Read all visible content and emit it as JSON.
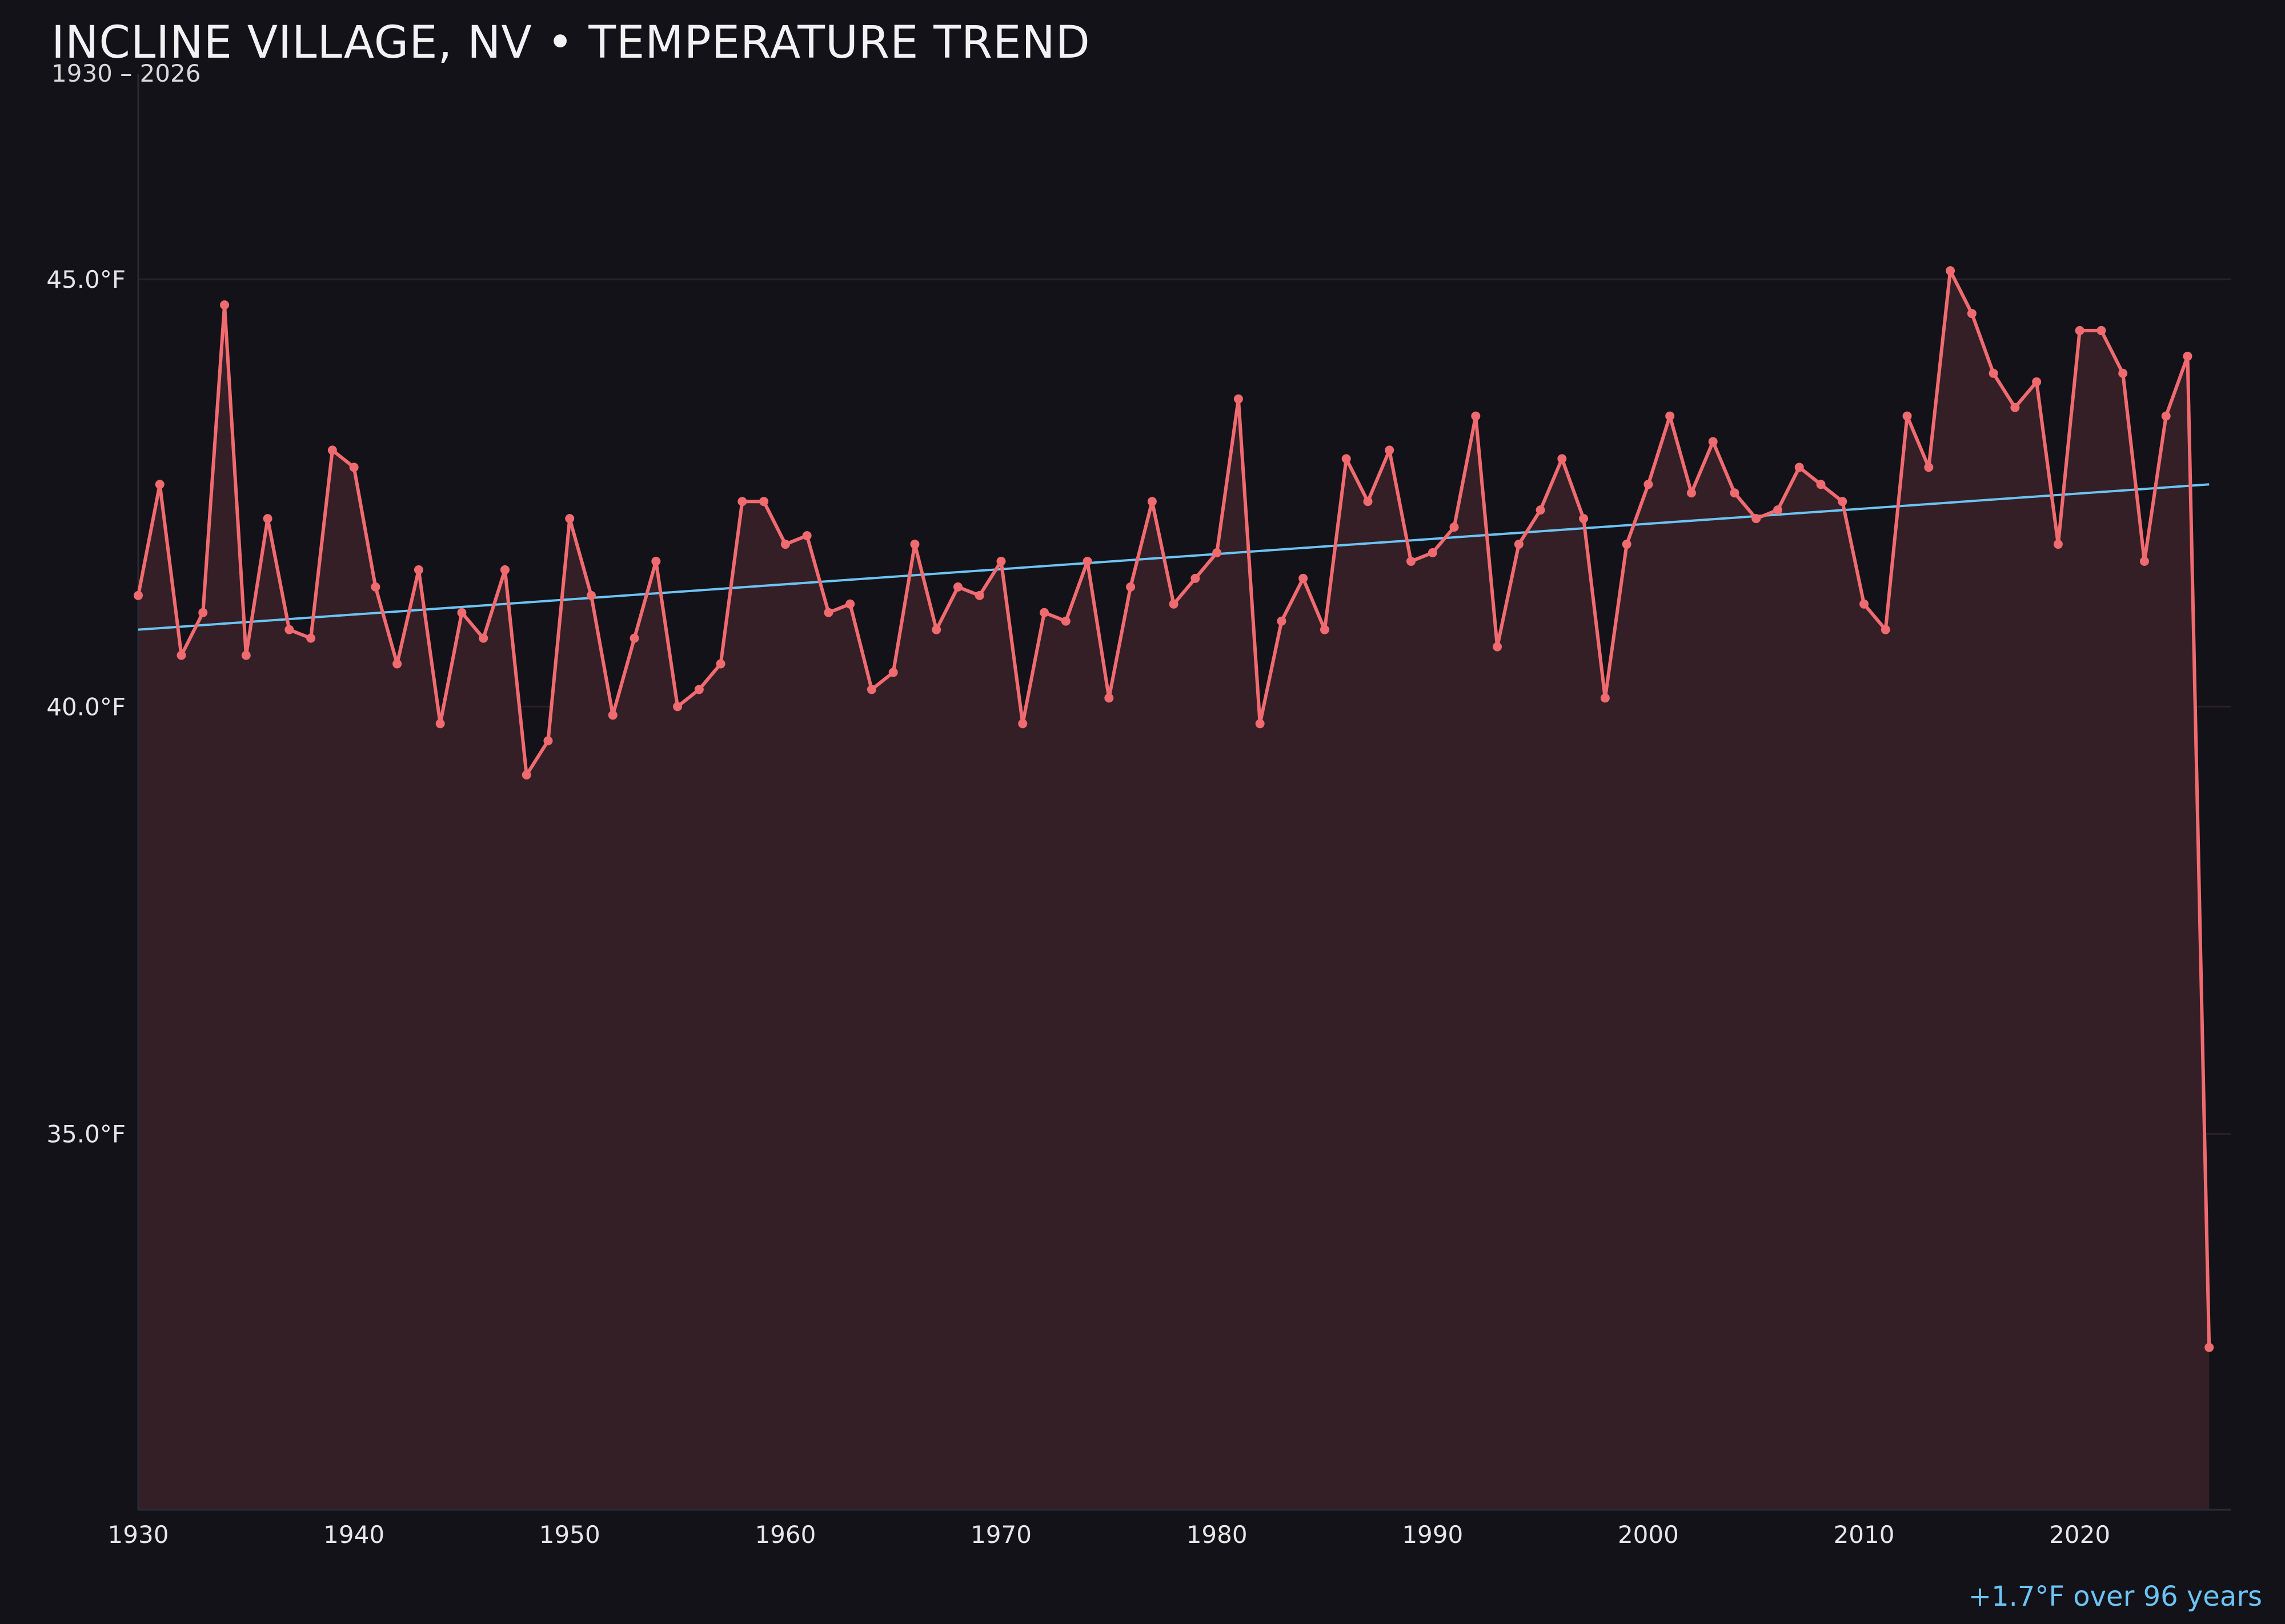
{
  "chart_data": {
    "type": "line",
    "title": "INCLINE VILLAGE, NV • TEMPERATURE TREND",
    "subtitle": "1930 – 2026",
    "summary": "+1.7°F over 96 years",
    "xlim": [
      1930,
      2027
    ],
    "ylim": [
      30.6,
      47.4
    ],
    "x_ticks": [
      1930,
      1940,
      1950,
      1960,
      1970,
      1980,
      1990,
      2000,
      2010,
      2020
    ],
    "x_tick_labels": [
      "1930",
      "1940",
      "1950",
      "1960",
      "1970",
      "1980",
      "1990",
      "2000",
      "2010",
      "2020"
    ],
    "y_ticks": [
      35,
      40,
      45
    ],
    "y_tick_labels": [
      "35.0°F",
      "40.0°F",
      "45.0°F"
    ],
    "grid": true,
    "colors": {
      "background": "#131218",
      "line": "#f06b70",
      "fill": "#341f26",
      "trend": "#6cc4f5",
      "grid": "#2a2228"
    },
    "x": [
      1930,
      1931,
      1932,
      1933,
      1934,
      1935,
      1936,
      1937,
      1938,
      1939,
      1940,
      1941,
      1942,
      1943,
      1944,
      1945,
      1946,
      1947,
      1948,
      1949,
      1950,
      1951,
      1952,
      1953,
      1954,
      1955,
      1956,
      1957,
      1958,
      1959,
      1960,
      1961,
      1962,
      1963,
      1964,
      1965,
      1966,
      1967,
      1968,
      1969,
      1970,
      1971,
      1972,
      1973,
      1974,
      1975,
      1976,
      1977,
      1978,
      1979,
      1980,
      1981,
      1982,
      1983,
      1984,
      1985,
      1986,
      1987,
      1988,
      1989,
      1990,
      1991,
      1992,
      1993,
      1994,
      1995,
      1996,
      1997,
      1998,
      1999,
      2000,
      2001,
      2002,
      2003,
      2004,
      2005,
      2006,
      2007,
      2008,
      2009,
      2010,
      2011,
      2012,
      2013,
      2014,
      2015,
      2016,
      2017,
      2018,
      2019,
      2020,
      2021,
      2022,
      2023,
      2024,
      2025,
      2026
    ],
    "series": [
      {
        "values": [
          41.3,
          42.6,
          40.6,
          41.1,
          44.7,
          40.6,
          42.2,
          40.9,
          40.8,
          43.0,
          42.8,
          41.4,
          40.5,
          41.6,
          39.8,
          41.1,
          40.8,
          41.6,
          39.2,
          39.6,
          42.2,
          41.3,
          39.9,
          40.8,
          41.7,
          40.0,
          40.2,
          40.5,
          42.4,
          42.4,
          41.9,
          42.0,
          41.1,
          41.2,
          40.2,
          40.4,
          41.9,
          40.9,
          41.4,
          41.3,
          41.7,
          39.8,
          41.1,
          41.0,
          41.7,
          40.1,
          41.4,
          42.4,
          41.2,
          41.5,
          41.8,
          43.6,
          39.8,
          41.0,
          41.5,
          40.9,
          42.9,
          42.4,
          43.0,
          41.7,
          41.8,
          42.1,
          43.4,
          40.7,
          41.9,
          42.3,
          42.9,
          42.2,
          40.1,
          41.9,
          42.6,
          43.4,
          42.5,
          43.1,
          42.5,
          42.2,
          42.3,
          42.8,
          42.6,
          42.4,
          41.2,
          40.9,
          43.4,
          42.8,
          45.1,
          44.6,
          43.9,
          43.5,
          43.8,
          41.9,
          44.4,
          44.4,
          43.9,
          41.7,
          43.4,
          44.1,
          32.5
        ]
      }
    ],
    "trend": {
      "x": [
        1930,
        2026
      ],
      "y": [
        40.9,
        42.6
      ]
    }
  }
}
